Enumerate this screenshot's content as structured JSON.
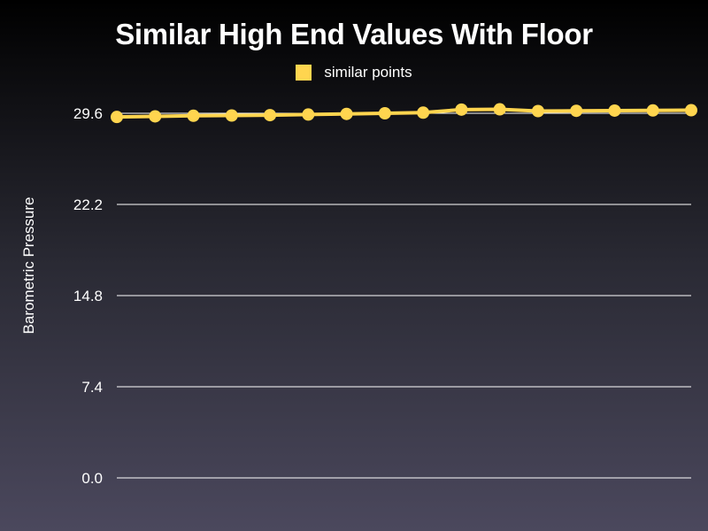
{
  "chart_data": {
    "type": "line",
    "title": "Similar High End Values With Floor",
    "ylabel": "Barometric Pressure",
    "xlabel": "",
    "ylim": [
      0,
      29.6
    ],
    "yticks": [
      "0.0",
      "7.4",
      "14.8",
      "22.2",
      "29.6"
    ],
    "ytick_values": [
      0,
      7.4,
      14.8,
      22.2,
      29.6
    ],
    "grid": true,
    "legend_position": "top-center",
    "x": [
      1,
      2,
      3,
      4,
      5,
      6,
      7,
      8,
      9,
      10,
      11,
      12,
      13,
      14,
      15,
      16
    ],
    "series": [
      {
        "name": "similar points",
        "color": "#ffd54f",
        "values": [
          29.3,
          29.35,
          29.4,
          29.42,
          29.45,
          29.5,
          29.55,
          29.6,
          29.65,
          29.9,
          29.92,
          29.78,
          29.8,
          29.82,
          29.83,
          29.85
        ]
      }
    ]
  }
}
